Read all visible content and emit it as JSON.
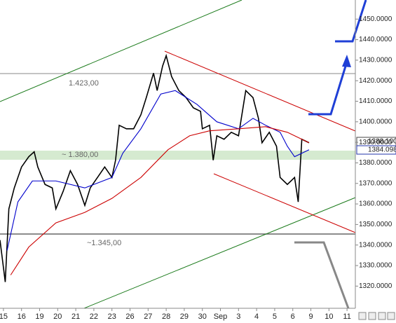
{
  "chart_data": {
    "type": "line",
    "xlim": [
      -0.19,
      19.46
    ],
    "xticks": [
      {
        "value": 0,
        "label": "15"
      },
      {
        "value": 1,
        "label": "16"
      },
      {
        "value": 2,
        "label": "19"
      },
      {
        "value": 3,
        "label": "20"
      },
      {
        "value": 4,
        "label": "21"
      },
      {
        "value": 5,
        "label": "22"
      },
      {
        "value": 6,
        "label": "23"
      },
      {
        "value": 7,
        "label": "26"
      },
      {
        "value": 8,
        "label": "27"
      },
      {
        "value": 9,
        "label": "28"
      },
      {
        "value": 10,
        "label": "29"
      },
      {
        "value": 11,
        "label": "30"
      },
      {
        "value": 12,
        "label": "Sep"
      },
      {
        "value": 13,
        "label": "3"
      },
      {
        "value": 14,
        "label": "4"
      },
      {
        "value": 15,
        "label": "5"
      },
      {
        "value": 16,
        "label": "6"
      },
      {
        "value": 17,
        "label": "9"
      },
      {
        "value": 18,
        "label": "10"
      },
      {
        "value": 19,
        "label": "11"
      }
    ],
    "ylim": [
      1309.2,
      1459.3
    ],
    "yticks": [
      {
        "value": 1320,
        "label": "1320.0000"
      },
      {
        "value": 1330,
        "label": "1330.0000"
      },
      {
        "value": 1340,
        "label": "1340.0000"
      },
      {
        "value": 1350,
        "label": "1350.0000"
      },
      {
        "value": 1360,
        "label": "1360.0000"
      },
      {
        "value": 1370,
        "label": "1370.0000"
      },
      {
        "value": 1380,
        "label": "1380.0000"
      },
      {
        "value": 1390,
        "label": "1390.0000"
      },
      {
        "value": 1400,
        "label": "1400.0000"
      },
      {
        "value": 1410,
        "label": "1410.0000"
      },
      {
        "value": 1420,
        "label": "1420.0000"
      },
      {
        "value": 1430,
        "label": "1430.0000"
      },
      {
        "value": 1440,
        "label": "1440.0000"
      },
      {
        "value": 1450,
        "label": "1450.0000"
      }
    ],
    "series": [
      {
        "color": "#000000",
        "x": [
          -0.19,
          0.1,
          0.3,
          0.6,
          1.0,
          1.4,
          1.7,
          1.9,
          2.3,
          2.7,
          2.9,
          3.3,
          3.7,
          4.1,
          4.5,
          4.8,
          5.2,
          5.6,
          6.0,
          6.2,
          6.4,
          6.8,
          7.2,
          7.6,
          7.9,
          8.3,
          8.5,
          8.8,
          9.0,
          9.3,
          9.7,
          10.1,
          10.5,
          10.9,
          11.0,
          11.4,
          11.6,
          11.8,
          12.2,
          12.6,
          13.0,
          13.4,
          13.8,
          14.1,
          14.3,
          14.7,
          15.1,
          15.3,
          15.7,
          16.1,
          16.3,
          16.5,
          16.9
        ],
        "values": [
          1342.4,
          1322.0,
          1357.6,
          1367.8,
          1378.0,
          1383.0,
          1385.4,
          1378.0,
          1369.5,
          1367.8,
          1357.6,
          1366.1,
          1376.2,
          1369.5,
          1359.3,
          1367.8,
          1372.9,
          1378.0,
          1372.9,
          1381.3,
          1398.3,
          1396.6,
          1396.6,
          1403.4,
          1411.8,
          1423.7,
          1415.2,
          1427.1,
          1432.2,
          1422.0,
          1415.2,
          1411.8,
          1406.8,
          1405.1,
          1396.6,
          1398.3,
          1381.3,
          1393.2,
          1391.5,
          1394.9,
          1393.2,
          1415.2,
          1411.8,
          1401.7,
          1389.8,
          1394.9,
          1388.1,
          1372.9,
          1369.5,
          1372.9,
          1361.0,
          1391.5,
          1389.8
        ]
      },
      {
        "color": "#0000cc",
        "x": [
          0.2,
          0.8,
          1.6,
          2.9,
          4.5,
          6.0,
          6.6,
          7.6,
          8.7,
          9.5,
          10.7,
          11.8,
          13.0,
          13.8,
          14.5,
          15.3,
          15.7,
          16.1,
          16.9
        ],
        "values": [
          1337.3,
          1361.0,
          1371.2,
          1371.2,
          1367.8,
          1372.9,
          1384.7,
          1396.6,
          1413.5,
          1415.2,
          1408.5,
          1400.0,
          1396.6,
          1401.7,
          1398.3,
          1394.9,
          1388.1,
          1383.0,
          1386.4
        ]
      },
      {
        "color": "#cc0000",
        "x": [
          0.4,
          1.4,
          2.9,
          4.5,
          6.0,
          7.6,
          9.1,
          10.3,
          11.4,
          13.0,
          14.5,
          15.7,
          16.9
        ],
        "values": [
          1325.4,
          1339.0,
          1350.8,
          1355.9,
          1362.7,
          1372.9,
          1386.4,
          1393.2,
          1395.6,
          1396.6,
          1397.6,
          1394.9,
          1389.8
        ]
      }
    ],
    "annotations": [
      "1.423,00",
      "~ 1.380,00",
      "~1.345,00"
    ],
    "last_price_labels": [
      "1388.100",
      "1384.098"
    ]
  }
}
